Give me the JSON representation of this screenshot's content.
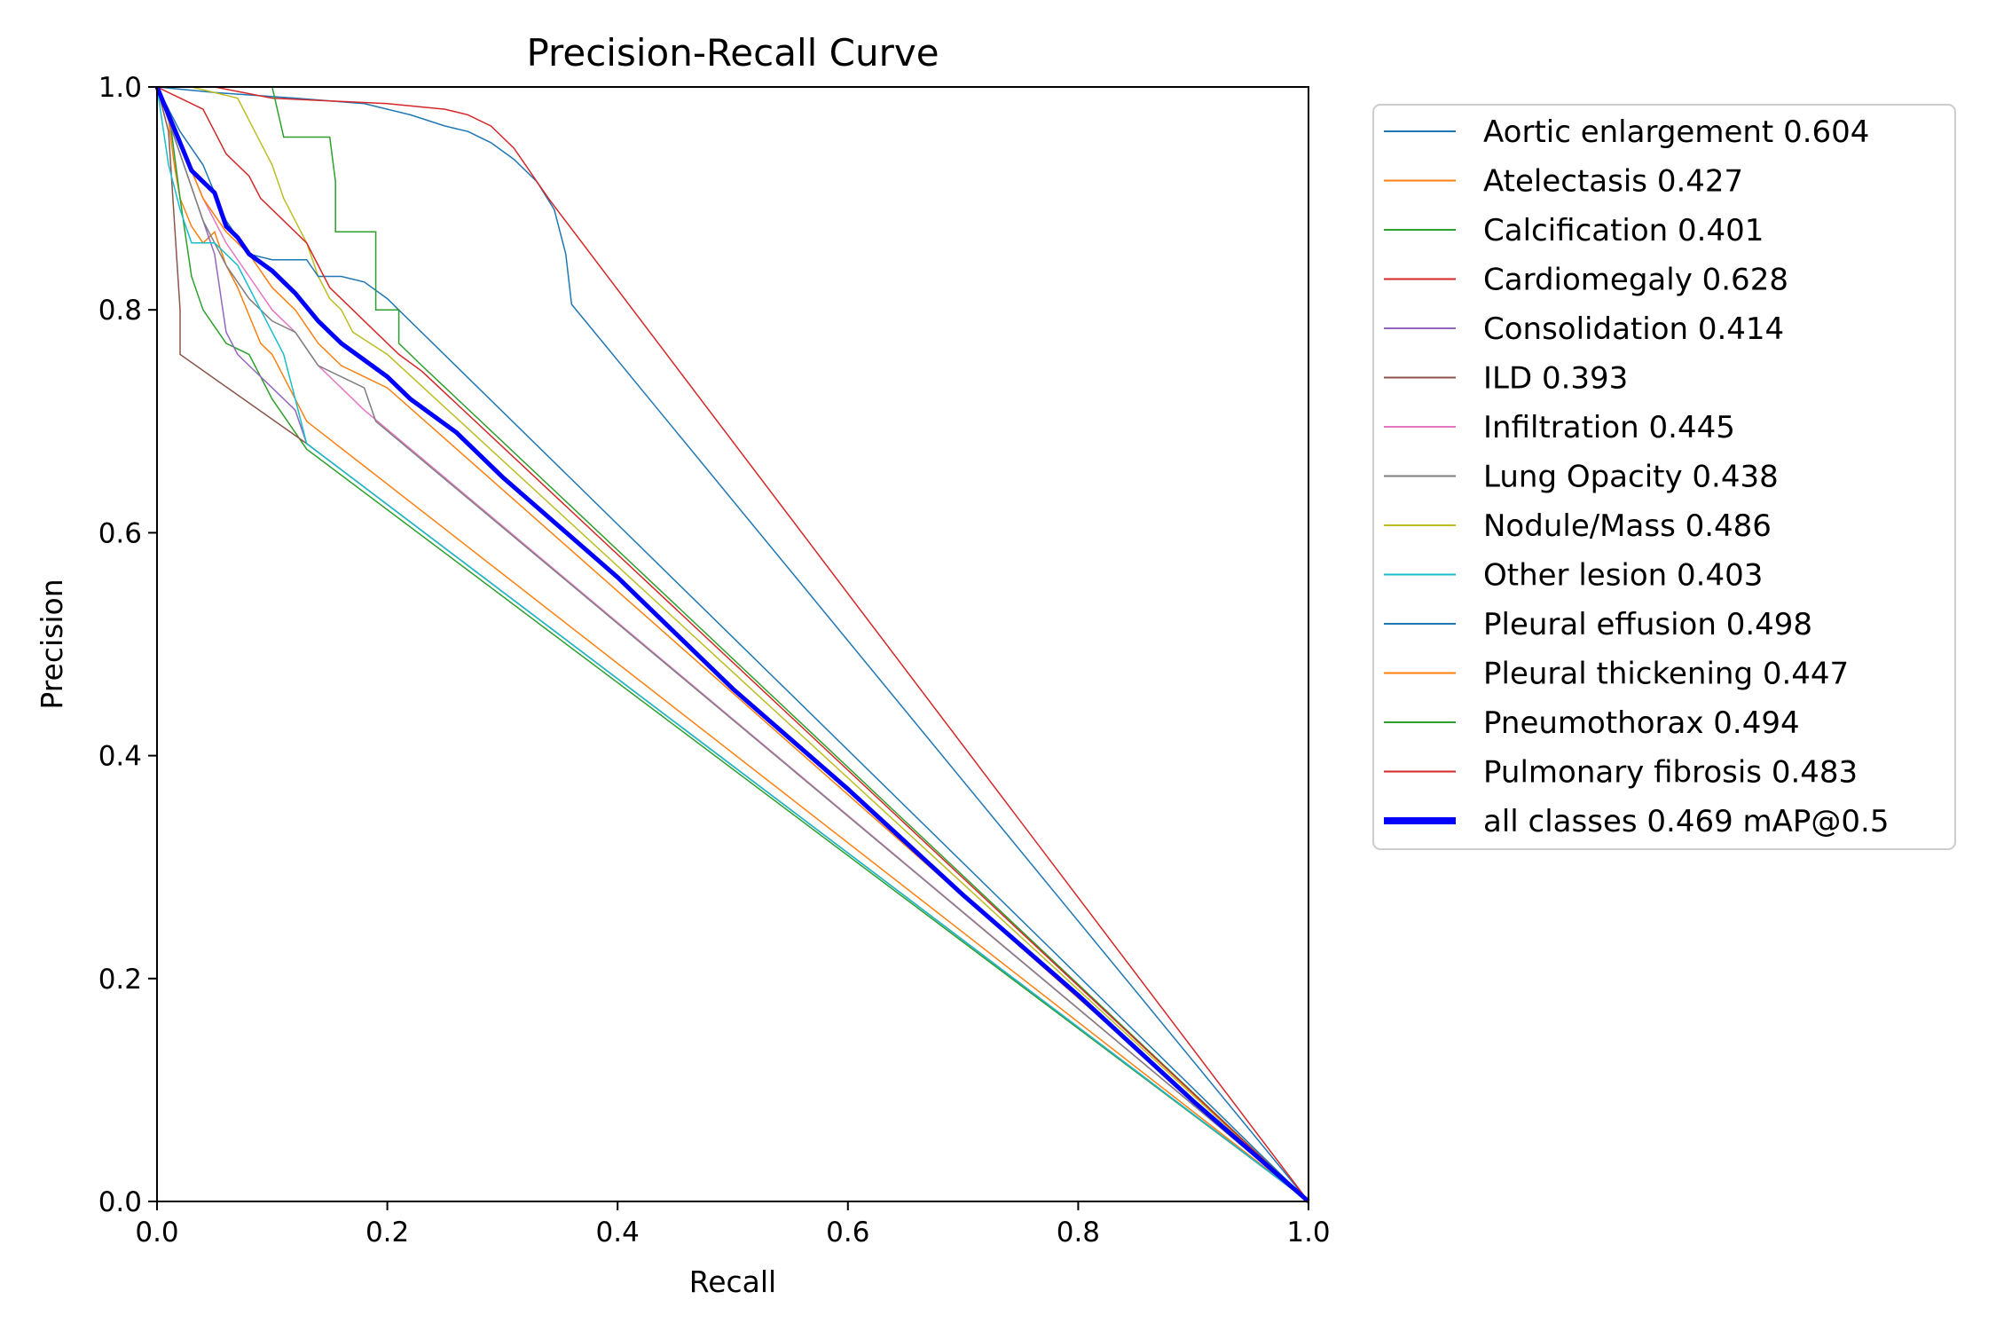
{
  "chart_data": {
    "type": "line",
    "title": "Precision-Recall Curve",
    "xlabel": "Recall",
    "ylabel": "Precision",
    "xlim": [
      0,
      1
    ],
    "ylim": [
      0,
      1
    ],
    "xticks": [
      "0.0",
      "0.2",
      "0.4",
      "0.6",
      "0.8",
      "1.0"
    ],
    "yticks": [
      "0.0",
      "0.2",
      "0.4",
      "0.6",
      "0.8",
      "1.0"
    ],
    "grid": false,
    "legend_position": "outside-right-top",
    "series": [
      {
        "name": "Aortic enlargement 0.604",
        "color": "#1f77b4",
        "width": 1.5,
        "points": [
          [
            0,
            1
          ],
          [
            0.05,
            0.995
          ],
          [
            0.12,
            0.99
          ],
          [
            0.18,
            0.985
          ],
          [
            0.22,
            0.975
          ],
          [
            0.25,
            0.965
          ],
          [
            0.27,
            0.96
          ],
          [
            0.29,
            0.95
          ],
          [
            0.31,
            0.935
          ],
          [
            0.33,
            0.915
          ],
          [
            0.345,
            0.89
          ],
          [
            0.35,
            0.87
          ],
          [
            0.355,
            0.85
          ],
          [
            0.36,
            0.805
          ],
          [
            1,
            0
          ]
        ]
      },
      {
        "name": "Atelectasis 0.427",
        "color": "#ff7f0e",
        "width": 1.5,
        "points": [
          [
            0,
            1
          ],
          [
            0.01,
            0.97
          ],
          [
            0.015,
            0.93
          ],
          [
            0.02,
            0.9
          ],
          [
            0.03,
            0.875
          ],
          [
            0.04,
            0.86
          ],
          [
            0.05,
            0.87
          ],
          [
            0.06,
            0.84
          ],
          [
            0.07,
            0.82
          ],
          [
            0.08,
            0.795
          ],
          [
            0.09,
            0.77
          ],
          [
            0.1,
            0.76
          ],
          [
            0.12,
            0.72
          ],
          [
            0.13,
            0.7
          ],
          [
            1,
            0
          ]
        ]
      },
      {
        "name": "Calcification 0.401",
        "color": "#2ca02c",
        "width": 1.5,
        "points": [
          [
            0,
            1
          ],
          [
            0.01,
            0.98
          ],
          [
            0.02,
            0.9
          ],
          [
            0.03,
            0.83
          ],
          [
            0.04,
            0.8
          ],
          [
            0.06,
            0.77
          ],
          [
            0.08,
            0.76
          ],
          [
            0.1,
            0.72
          ],
          [
            0.12,
            0.69
          ],
          [
            0.13,
            0.675
          ],
          [
            1,
            0
          ]
        ]
      },
      {
        "name": "Cardiomegaly 0.628",
        "color": "#d62728",
        "width": 1.5,
        "points": [
          [
            0,
            1
          ],
          [
            0.05,
            1
          ],
          [
            0.1,
            0.99
          ],
          [
            0.2,
            0.985
          ],
          [
            0.25,
            0.98
          ],
          [
            0.27,
            0.975
          ],
          [
            0.29,
            0.965
          ],
          [
            0.3,
            0.955
          ],
          [
            0.31,
            0.945
          ],
          [
            0.32,
            0.93
          ],
          [
            0.33,
            0.915
          ],
          [
            0.34,
            0.9
          ],
          [
            1,
            0
          ]
        ]
      },
      {
        "name": "Consolidation 0.414",
        "color": "#9467bd",
        "width": 1.5,
        "points": [
          [
            0,
            1
          ],
          [
            0.02,
            0.94
          ],
          [
            0.04,
            0.88
          ],
          [
            0.05,
            0.85
          ],
          [
            0.06,
            0.78
          ],
          [
            0.07,
            0.76
          ],
          [
            0.08,
            0.75
          ],
          [
            0.1,
            0.73
          ],
          [
            0.12,
            0.71
          ],
          [
            0.13,
            0.68
          ],
          [
            1,
            0
          ]
        ]
      },
      {
        "name": "ILD 0.393",
        "color": "#8c564b",
        "width": 1.5,
        "points": [
          [
            0,
            1
          ],
          [
            0.01,
            0.96
          ],
          [
            0.015,
            0.88
          ],
          [
            0.02,
            0.8
          ],
          [
            0.02,
            0.76
          ],
          [
            0.13,
            0.68
          ],
          [
            1,
            0
          ]
        ]
      },
      {
        "name": "Infiltration 0.445",
        "color": "#e377c2",
        "width": 1.5,
        "points": [
          [
            0,
            1
          ],
          [
            0.02,
            0.95
          ],
          [
            0.04,
            0.9
          ],
          [
            0.06,
            0.86
          ],
          [
            0.08,
            0.83
          ],
          [
            0.1,
            0.8
          ],
          [
            0.12,
            0.78
          ],
          [
            0.14,
            0.75
          ],
          [
            0.16,
            0.73
          ],
          [
            0.18,
            0.71
          ],
          [
            1,
            0
          ]
        ]
      },
      {
        "name": "Lung Opacity 0.438",
        "color": "#7f7f7f",
        "width": 1.5,
        "points": [
          [
            0,
            1
          ],
          [
            0.02,
            0.94
          ],
          [
            0.04,
            0.88
          ],
          [
            0.06,
            0.84
          ],
          [
            0.08,
            0.81
          ],
          [
            0.1,
            0.79
          ],
          [
            0.12,
            0.78
          ],
          [
            0.14,
            0.75
          ],
          [
            0.16,
            0.74
          ],
          [
            0.18,
            0.73
          ],
          [
            0.19,
            0.7
          ],
          [
            1,
            0
          ]
        ]
      },
      {
        "name": "Nodule/Mass 0.486",
        "color": "#bcbd22",
        "width": 1.5,
        "points": [
          [
            0,
            1
          ],
          [
            0.03,
            1
          ],
          [
            0.07,
            0.99
          ],
          [
            0.08,
            0.97
          ],
          [
            0.09,
            0.95
          ],
          [
            0.1,
            0.93
          ],
          [
            0.11,
            0.9
          ],
          [
            0.12,
            0.88
          ],
          [
            0.13,
            0.86
          ],
          [
            0.14,
            0.83
          ],
          [
            0.15,
            0.81
          ],
          [
            0.16,
            0.8
          ],
          [
            0.17,
            0.78
          ],
          [
            0.2,
            0.76
          ],
          [
            1,
            0
          ]
        ]
      },
      {
        "name": "Other lesion 0.403",
        "color": "#17becf",
        "width": 1.5,
        "points": [
          [
            0,
            1
          ],
          [
            0.01,
            0.93
          ],
          [
            0.02,
            0.89
          ],
          [
            0.03,
            0.86
          ],
          [
            0.05,
            0.86
          ],
          [
            0.07,
            0.84
          ],
          [
            0.08,
            0.82
          ],
          [
            0.09,
            0.8
          ],
          [
            0.1,
            0.78
          ],
          [
            0.11,
            0.76
          ],
          [
            0.12,
            0.72
          ],
          [
            0.13,
            0.68
          ],
          [
            1,
            0
          ]
        ]
      },
      {
        "name": "Pleural effusion 0.498",
        "color": "#1f77b4",
        "width": 1.5,
        "points": [
          [
            0,
            1
          ],
          [
            0.02,
            0.96
          ],
          [
            0.04,
            0.93
          ],
          [
            0.06,
            0.88
          ],
          [
            0.08,
            0.85
          ],
          [
            0.1,
            0.845
          ],
          [
            0.13,
            0.845
          ],
          [
            0.14,
            0.83
          ],
          [
            0.16,
            0.83
          ],
          [
            0.18,
            0.825
          ],
          [
            0.2,
            0.81
          ],
          [
            1,
            0
          ]
        ]
      },
      {
        "name": "Pleural thickening 0.447",
        "color": "#ff7f0e",
        "width": 1.5,
        "points": [
          [
            0,
            1
          ],
          [
            0.02,
            0.95
          ],
          [
            0.04,
            0.9
          ],
          [
            0.06,
            0.87
          ],
          [
            0.08,
            0.85
          ],
          [
            0.1,
            0.82
          ],
          [
            0.12,
            0.8
          ],
          [
            0.14,
            0.77
          ],
          [
            0.16,
            0.75
          ],
          [
            0.18,
            0.74
          ],
          [
            0.2,
            0.73
          ],
          [
            1,
            0
          ]
        ]
      },
      {
        "name": "Pneumothorax 0.494",
        "color": "#2ca02c",
        "width": 1.5,
        "points": [
          [
            0,
            1
          ],
          [
            0.1,
            1
          ],
          [
            0.11,
            0.955
          ],
          [
            0.15,
            0.955
          ],
          [
            0.155,
            0.915
          ],
          [
            0.155,
            0.87
          ],
          [
            0.19,
            0.87
          ],
          [
            0.19,
            0.8
          ],
          [
            0.21,
            0.8
          ],
          [
            0.21,
            0.77
          ],
          [
            0.23,
            0.75
          ],
          [
            1,
            0
          ]
        ]
      },
      {
        "name": "Pulmonary fibrosis 0.483",
        "color": "#d62728",
        "width": 1.5,
        "points": [
          [
            0,
            1
          ],
          [
            0.02,
            0.99
          ],
          [
            0.04,
            0.98
          ],
          [
            0.05,
            0.96
          ],
          [
            0.06,
            0.94
          ],
          [
            0.08,
            0.92
          ],
          [
            0.09,
            0.9
          ],
          [
            0.11,
            0.88
          ],
          [
            0.13,
            0.86
          ],
          [
            0.14,
            0.84
          ],
          [
            0.15,
            0.82
          ],
          [
            0.17,
            0.8
          ],
          [
            0.19,
            0.78
          ],
          [
            0.21,
            0.76
          ],
          [
            0.23,
            0.745
          ],
          [
            1,
            0
          ]
        ]
      },
      {
        "name": "all classes 0.469 mAP@0.5",
        "color": "#0000ff",
        "width": 5,
        "points": [
          [
            0,
            1
          ],
          [
            0.01,
            0.975
          ],
          [
            0.02,
            0.95
          ],
          [
            0.03,
            0.925
          ],
          [
            0.04,
            0.915
          ],
          [
            0.05,
            0.905
          ],
          [
            0.06,
            0.875
          ],
          [
            0.07,
            0.865
          ],
          [
            0.08,
            0.85
          ],
          [
            0.1,
            0.835
          ],
          [
            0.12,
            0.815
          ],
          [
            0.14,
            0.79
          ],
          [
            0.16,
            0.77
          ],
          [
            0.18,
            0.755
          ],
          [
            0.2,
            0.74
          ],
          [
            0.22,
            0.72
          ],
          [
            0.26,
            0.69
          ],
          [
            0.3,
            0.65
          ],
          [
            0.35,
            0.605
          ],
          [
            0.4,
            0.56
          ],
          [
            0.5,
            0.46
          ],
          [
            0.6,
            0.37
          ],
          [
            0.7,
            0.275
          ],
          [
            0.8,
            0.185
          ],
          [
            0.9,
            0.09
          ],
          [
            1,
            0
          ]
        ]
      }
    ]
  }
}
